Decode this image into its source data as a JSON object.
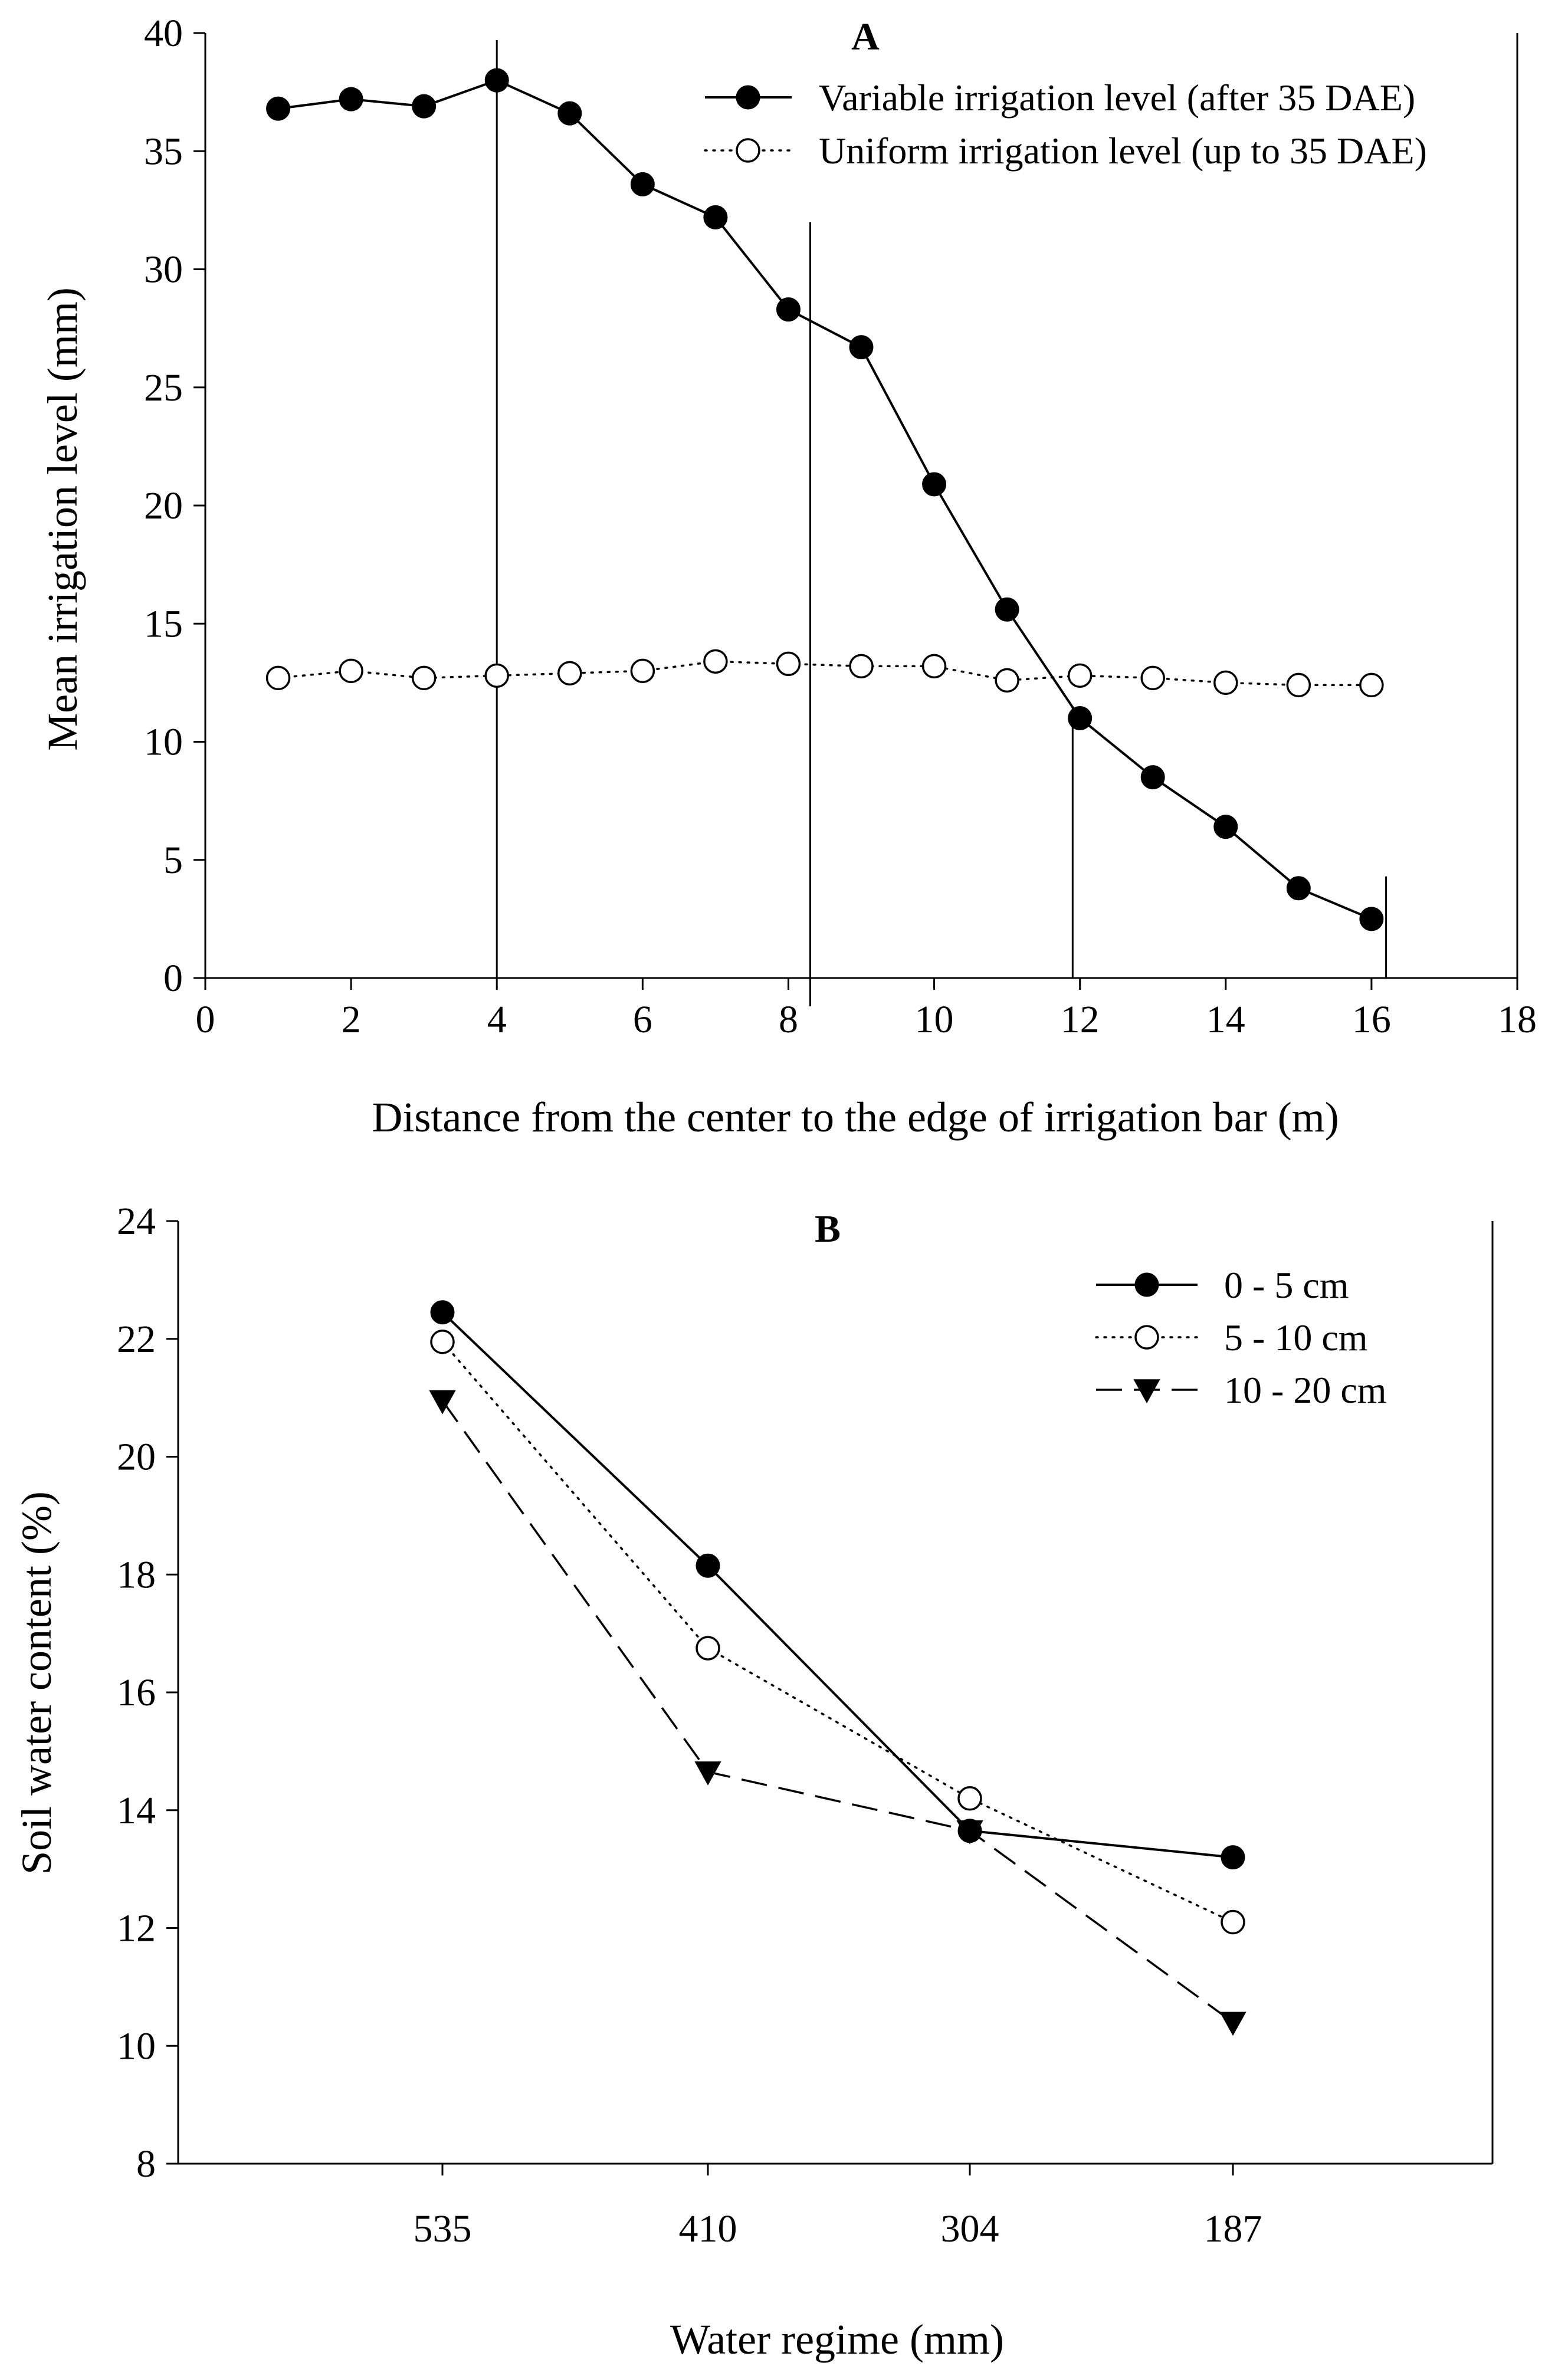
{
  "chart_data": [
    {
      "type": "line",
      "title": "A",
      "xlabel": "Distance from the center to the edge of irrigation bar (m)",
      "ylabel": "Mean irrigation level (mm)",
      "xlim": [
        0,
        18
      ],
      "ylim": [
        0,
        40
      ],
      "xticks": [
        0,
        2,
        4,
        6,
        8,
        10,
        12,
        14,
        16,
        18
      ],
      "yticks": [
        0,
        5,
        10,
        15,
        20,
        25,
        30,
        35,
        40
      ],
      "grid": false,
      "legend_position": "top-right",
      "x": [
        1,
        2,
        3,
        4,
        5,
        6,
        7,
        8,
        9,
        10,
        11,
        12,
        13,
        14,
        15,
        16
      ],
      "series": [
        {
          "name": "Variable irrigation level (after 35 DAE)",
          "line": "solid",
          "marker": "filled-circle",
          "values": [
            36.8,
            37.2,
            36.9,
            38.0,
            36.6,
            33.6,
            32.2,
            28.3,
            26.7,
            20.9,
            15.6,
            11.0,
            8.5,
            6.4,
            3.8,
            2.5
          ]
        },
        {
          "name": "Uniform irrigation level (up to 35 DAE)",
          "line": "dotted",
          "marker": "open-circle",
          "values": [
            12.7,
            13.0,
            12.7,
            12.8,
            12.9,
            13.0,
            13.4,
            13.3,
            13.2,
            13.2,
            12.6,
            12.8,
            12.7,
            12.5,
            12.4,
            12.4
          ]
        }
      ],
      "reference_lines": [
        {
          "x": 4.0,
          "y_min": 0,
          "y_max": 39.7
        },
        {
          "x": 8.3,
          "y_min": -1.2,
          "y_max": 32.0
        },
        {
          "x": 11.9,
          "y_min": 0,
          "y_max": 11.5
        },
        {
          "x": 16.2,
          "y_min": 0,
          "y_max": 4.3
        }
      ]
    },
    {
      "type": "line",
      "title": "B",
      "xlabel": "Water regime (mm)",
      "ylabel": "Soil water content (%)",
      "categories": [
        "535",
        "410",
        "304",
        "187"
      ],
      "ylim": [
        8,
        24
      ],
      "yticks": [
        8,
        10,
        12,
        14,
        16,
        18,
        20,
        22,
        24
      ],
      "grid": false,
      "legend_position": "top-right",
      "series": [
        {
          "name": "0 - 5 cm",
          "line": "solid",
          "marker": "filled-circle",
          "values": [
            22.45,
            18.15,
            13.65,
            13.2
          ]
        },
        {
          "name": "5 - 10 cm",
          "line": "dotted",
          "marker": "open-circle",
          "values": [
            21.95,
            16.75,
            14.2,
            12.1
          ]
        },
        {
          "name": "10 - 20 cm",
          "line": "dashed",
          "marker": "filled-triangle-down",
          "values": [
            20.95,
            14.65,
            13.65,
            10.4
          ]
        }
      ]
    }
  ]
}
